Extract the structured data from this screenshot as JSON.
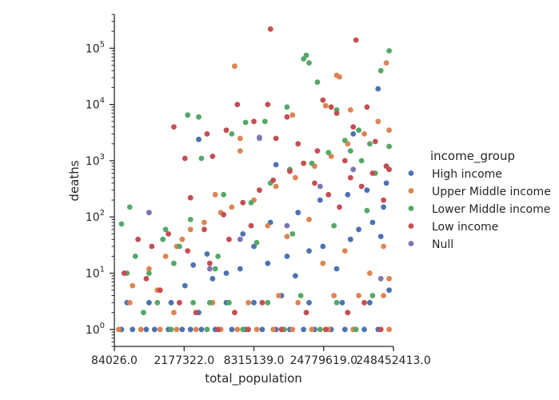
{
  "chart_data": {
    "type": "scatter",
    "xlabel": "total_population",
    "ylabel": "deaths",
    "y_scale": "log",
    "ylim": [
      0.5,
      400000
    ],
    "grid": false,
    "x_ticks": [
      "84026.0",
      "2177322.0",
      "8315139.0",
      "24779619.0",
      "248452413.0"
    ],
    "x_scale": "rank (categorical, ordered)",
    "y_ticks": [
      {
        "value": 1,
        "base": "10",
        "exp": "0"
      },
      {
        "value": 10,
        "base": "10",
        "exp": "1"
      },
      {
        "value": 100,
        "base": "10",
        "exp": "2"
      },
      {
        "value": 1000,
        "base": "10",
        "exp": "3"
      },
      {
        "value": 10000,
        "base": "10",
        "exp": "4"
      },
      {
        "value": 100000,
        "base": "10",
        "exp": "5"
      }
    ],
    "legend": {
      "title": "income_group",
      "placement": "right",
      "entries": [
        {
          "name": "High income",
          "color": "#4c72b0"
        },
        {
          "name": "Upper Middle income",
          "color": "#dd8452"
        },
        {
          "name": "Lower Middle income",
          "color": "#55a868"
        },
        {
          "name": "Low income",
          "color": "#c44e52"
        },
        {
          "name": "Null",
          "color": "#8172b3"
        }
      ]
    },
    "series": [
      {
        "name": "High income",
        "color": "#4c72b0",
        "points": [
          [
            0.02,
            1
          ],
          [
            0.06,
            1
          ],
          [
            0.11,
            1
          ],
          [
            0.14,
            1
          ],
          [
            0.19,
            1
          ],
          [
            0.24,
            1
          ],
          [
            0.27,
            1
          ],
          [
            0.31,
            1
          ],
          [
            0.36,
            1
          ],
          [
            0.42,
            1
          ],
          [
            0.47,
            1
          ],
          [
            0.53,
            1
          ],
          [
            0.58,
            1
          ],
          [
            0.63,
            1
          ],
          [
            0.68,
            1
          ],
          [
            0.72,
            1
          ],
          [
            0.78,
            1
          ],
          [
            0.83,
            1
          ],
          [
            0.9,
            1
          ],
          [
            0.95,
            1
          ],
          [
            0.04,
            3
          ],
          [
            0.12,
            3
          ],
          [
            0.2,
            3
          ],
          [
            0.3,
            2
          ],
          [
            0.4,
            3
          ],
          [
            0.5,
            3
          ],
          [
            0.6,
            4
          ],
          [
            0.7,
            3
          ],
          [
            0.82,
            3
          ],
          [
            0.92,
            3
          ],
          [
            0.25,
            6
          ],
          [
            0.35,
            8
          ],
          [
            0.45,
            12
          ],
          [
            0.55,
            15
          ],
          [
            0.62,
            20
          ],
          [
            0.7,
            25
          ],
          [
            0.75,
            30
          ],
          [
            0.8,
            12
          ],
          [
            0.85,
            40
          ],
          [
            0.88,
            60
          ],
          [
            0.93,
            80
          ],
          [
            0.97,
            150
          ],
          [
            0.3,
            2400
          ],
          [
            0.58,
            850
          ],
          [
            0.86,
            3000
          ],
          [
            0.95,
            19000
          ],
          [
            0.96,
            45
          ],
          [
            0.65,
            9
          ],
          [
            0.5,
            30
          ],
          [
            0.4,
            10
          ],
          [
            0.28,
            14
          ],
          [
            0.33,
            22
          ],
          [
            0.46,
            50
          ],
          [
            0.56,
            80
          ],
          [
            0.66,
            120
          ],
          [
            0.74,
            200
          ],
          [
            0.84,
            250
          ],
          [
            0.91,
            300
          ],
          [
            0.98,
            400
          ],
          [
            0.99,
            5
          ]
        ]
      },
      {
        "name": "Upper Middle income",
        "color": "#dd8452",
        "points": [
          [
            0.01,
            1
          ],
          [
            0.09,
            1
          ],
          [
            0.16,
            1
          ],
          [
            0.22,
            1
          ],
          [
            0.29,
            1
          ],
          [
            0.38,
            1
          ],
          [
            0.44,
            1
          ],
          [
            0.51,
            1
          ],
          [
            0.57,
            1
          ],
          [
            0.64,
            1
          ],
          [
            0.71,
            1
          ],
          [
            0.77,
            1
          ],
          [
            0.86,
            1
          ],
          [
            0.99,
            1
          ],
          [
            0.05,
            3
          ],
          [
            0.15,
            5
          ],
          [
            0.21,
            2
          ],
          [
            0.35,
            3
          ],
          [
            0.48,
            3
          ],
          [
            0.59,
            4
          ],
          [
            0.66,
            3
          ],
          [
            0.79,
            4
          ],
          [
            0.88,
            4
          ],
          [
            0.97,
            4
          ],
          [
            0.06,
            6
          ],
          [
            0.12,
            12
          ],
          [
            0.18,
            20
          ],
          [
            0.24,
            40
          ],
          [
            0.32,
            80
          ],
          [
            0.42,
            150
          ],
          [
            0.5,
            200
          ],
          [
            0.58,
            350
          ],
          [
            0.65,
            500
          ],
          [
            0.72,
            800
          ],
          [
            0.78,
            1200
          ],
          [
            0.84,
            2000
          ],
          [
            0.9,
            3000
          ],
          [
            0.95,
            5000
          ],
          [
            0.99,
            3500
          ],
          [
            0.43,
            48000
          ],
          [
            0.8,
            33000
          ],
          [
            0.81,
            31000
          ],
          [
            0.98,
            55000
          ],
          [
            0.85,
            8000
          ],
          [
            0.76,
            9500
          ],
          [
            0.64,
            6500
          ],
          [
            0.45,
            2500
          ],
          [
            0.45,
            1500
          ],
          [
            0.36,
            250
          ],
          [
            0.27,
            60
          ],
          [
            0.38,
            120
          ],
          [
            0.55,
            70
          ],
          [
            0.62,
            45
          ],
          [
            0.7,
            90
          ],
          [
            0.75,
            15
          ],
          [
            0.83,
            25
          ],
          [
            0.92,
            10
          ],
          [
            0.97,
            30
          ],
          [
            0.99,
            8
          ],
          [
            0.22,
            30
          ]
        ]
      },
      {
        "name": "Lower Middle income",
        "color": "#55a868",
        "points": [
          [
            0.02,
            75
          ],
          [
            0.04,
            10
          ],
          [
            0.05,
            150
          ],
          [
            0.07,
            20
          ],
          [
            0.12,
            10
          ],
          [
            0.17,
            40
          ],
          [
            0.23,
            30
          ],
          [
            0.26,
            6500
          ],
          [
            0.3,
            6000
          ],
          [
            0.31,
            1100
          ],
          [
            0.34,
            3
          ],
          [
            0.36,
            12
          ],
          [
            0.42,
            3000
          ],
          [
            0.47,
            4800
          ],
          [
            0.52,
            2500
          ],
          [
            0.54,
            5000
          ],
          [
            0.62,
            9000
          ],
          [
            0.68,
            65000
          ],
          [
            0.69,
            75000
          ],
          [
            0.7,
            55000
          ],
          [
            0.73,
            25000
          ],
          [
            0.8,
            8000
          ],
          [
            0.85,
            1500
          ],
          [
            0.88,
            3500
          ],
          [
            0.92,
            2000
          ],
          [
            0.96,
            40000
          ],
          [
            0.99,
            90000
          ],
          [
            0.1,
            2
          ],
          [
            0.2,
            1
          ],
          [
            0.33,
            1
          ],
          [
            0.46,
            1
          ],
          [
            0.61,
            1
          ],
          [
            0.74,
            1
          ],
          [
            0.87,
            1
          ],
          [
            0.15,
            3
          ],
          [
            0.28,
            3
          ],
          [
            0.41,
            3
          ],
          [
            0.55,
            3
          ],
          [
            0.67,
            4
          ],
          [
            0.8,
            3
          ],
          [
            0.93,
            4
          ],
          [
            0.18,
            60
          ],
          [
            0.27,
            90
          ],
          [
            0.39,
            250
          ],
          [
            0.49,
            180
          ],
          [
            0.56,
            400
          ],
          [
            0.63,
            700
          ],
          [
            0.71,
            900
          ],
          [
            0.77,
            1400
          ],
          [
            0.83,
            2300
          ],
          [
            0.89,
            1000
          ],
          [
            0.94,
            600
          ],
          [
            0.98,
            800
          ],
          [
            0.21,
            15
          ],
          [
            0.37,
            20
          ],
          [
            0.51,
            35
          ],
          [
            0.64,
            50
          ],
          [
            0.79,
            70
          ],
          [
            0.91,
            130
          ],
          [
            0.99,
            1800
          ]
        ]
      },
      {
        "name": "Low income",
        "color": "#c44e52",
        "points": [
          [
            0.03,
            10
          ],
          [
            0.08,
            40
          ],
          [
            0.13,
            30
          ],
          [
            0.19,
            50
          ],
          [
            0.25,
            1100
          ],
          [
            0.27,
            220
          ],
          [
            0.35,
            1200
          ],
          [
            0.4,
            3500
          ],
          [
            0.44,
            10000
          ],
          [
            0.55,
            10000
          ],
          [
            0.56,
            220000
          ],
          [
            0.62,
            6000
          ],
          [
            0.75,
            12000
          ],
          [
            0.78,
            9000
          ],
          [
            0.8,
            7000
          ],
          [
            0.86,
            4000
          ],
          [
            0.87,
            140000
          ],
          [
            0.91,
            9000
          ],
          [
            0.98,
            800
          ],
          [
            0.21,
            4000
          ],
          [
            0.33,
            3000
          ],
          [
            0.5,
            5000
          ],
          [
            0.58,
            2500
          ],
          [
            0.66,
            2000
          ],
          [
            0.73,
            1500
          ],
          [
            0.83,
            1000
          ],
          [
            0.94,
            2200
          ],
          [
            0.11,
            8
          ],
          [
            0.16,
            5
          ],
          [
            0.23,
            3
          ],
          [
            0.29,
            2
          ],
          [
            0.37,
            1
          ],
          [
            0.43,
            2
          ],
          [
            0.48,
            1
          ],
          [
            0.53,
            3
          ],
          [
            0.6,
            1
          ],
          [
            0.69,
            2
          ],
          [
            0.76,
            1
          ],
          [
            0.84,
            2
          ],
          [
            0.9,
            3
          ],
          [
            0.96,
            1
          ],
          [
            0.32,
            60
          ],
          [
            0.39,
            110
          ],
          [
            0.46,
            180
          ],
          [
            0.52,
            300
          ],
          [
            0.57,
            450
          ],
          [
            0.63,
            650
          ],
          [
            0.68,
            900
          ],
          [
            0.72,
            400
          ],
          [
            0.77,
            250
          ],
          [
            0.81,
            150
          ],
          [
            0.85,
            500
          ],
          [
            0.89,
            350
          ],
          [
            0.93,
            600
          ],
          [
            0.97,
            200
          ],
          [
            0.99,
            700
          ],
          [
            0.26,
            25
          ],
          [
            0.34,
            15
          ],
          [
            0.41,
            40
          ],
          [
            0.49,
            70
          ]
        ]
      },
      {
        "name": "Null",
        "color": "#8172b3",
        "points": [
          [
            0.12,
            120
          ],
          [
            0.52,
            2600
          ],
          [
            0.62,
            70
          ],
          [
            0.74,
            350
          ],
          [
            0.86,
            700
          ],
          [
            0.96,
            8
          ],
          [
            0.34,
            12
          ],
          [
            0.45,
            40
          ]
        ]
      }
    ]
  }
}
